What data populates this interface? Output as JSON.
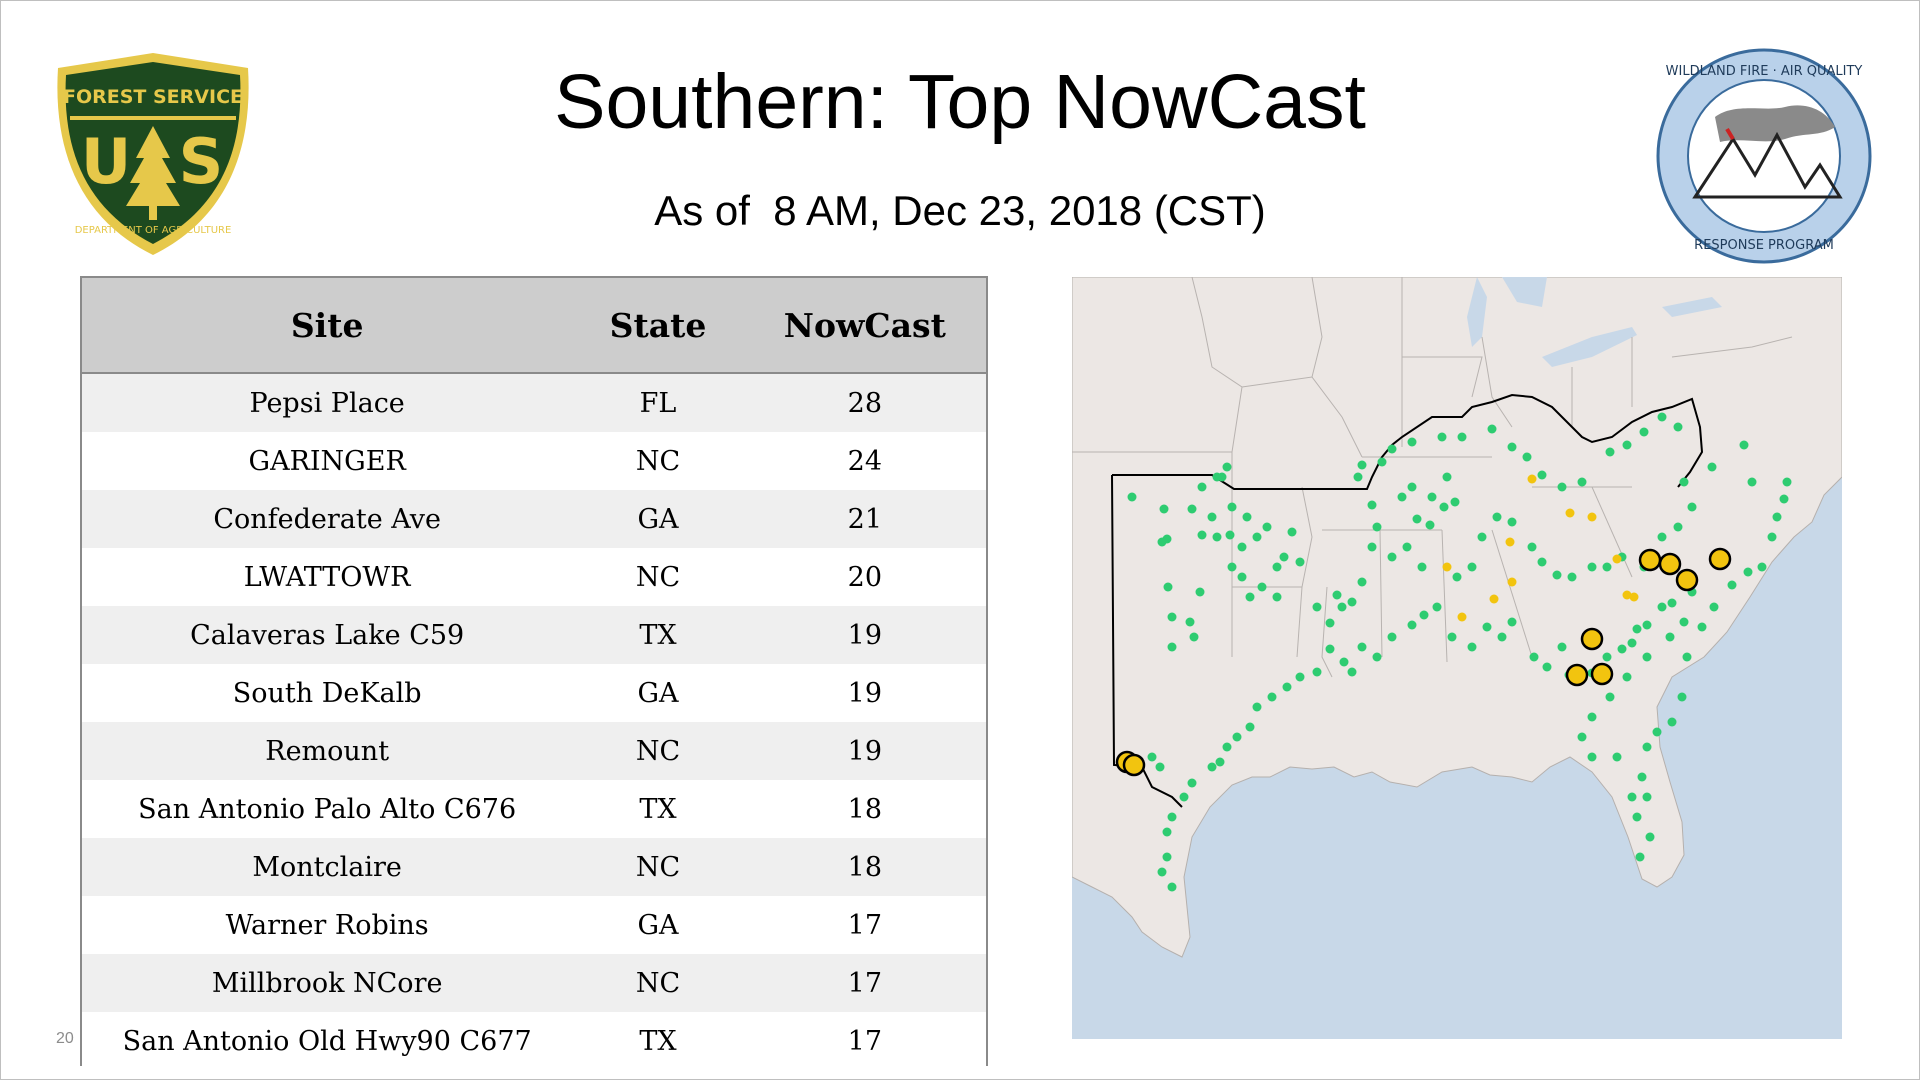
{
  "slide": {
    "title": "Southern: Top NowCast",
    "subtitle": "As of  8 AM, Dec 23, 2018 (CST)",
    "slide_number": "20"
  },
  "logos": {
    "left": {
      "text_top": "FOREST SERVICE",
      "text_bottom": "DEPARTMENT OF AGRICULTURE",
      "initials": "US",
      "colors": {
        "green": "#1d4a1f",
        "gold": "#e6c84a"
      }
    },
    "right": {
      "text_top": "WILDLAND FIRE · AIR QUALITY",
      "text_bottom": "RESPONSE PROGRAM",
      "colors": {
        "ring": "#b9d1ea",
        "edge": "#3a6b9c"
      }
    }
  },
  "table": {
    "headers": [
      "Site",
      "State",
      "NowCast"
    ],
    "rows": [
      [
        "Pepsi Place",
        "FL",
        "28"
      ],
      [
        "GARINGER",
        "NC",
        "24"
      ],
      [
        "Confederate Ave",
        "GA",
        "21"
      ],
      [
        "LWATTOWR",
        "NC",
        "20"
      ],
      [
        "Calaveras Lake C59",
        "TX",
        "19"
      ],
      [
        "South DeKalb",
        "GA",
        "19"
      ],
      [
        "Remount",
        "NC",
        "19"
      ],
      [
        "San Antonio Palo Alto C676",
        "TX",
        "18"
      ],
      [
        "Montclaire",
        "NC",
        "18"
      ],
      [
        "Warner Robins",
        "GA",
        "17"
      ],
      [
        "Millbrook NCore",
        "NC",
        "17"
      ],
      [
        "San Antonio Old Hwy90 C677",
        "TX",
        "17"
      ]
    ]
  },
  "map": {
    "colors": {
      "land": "#ece7e4",
      "water": "#c8d8e8",
      "region_outline": "#000000",
      "good": "#2ecc71",
      "moderate": "#f2c40f",
      "top_site": "#f2c40f"
    },
    "icons": [
      "green-site-marker",
      "yellow-site-marker",
      "top-site-marker"
    ]
  }
}
